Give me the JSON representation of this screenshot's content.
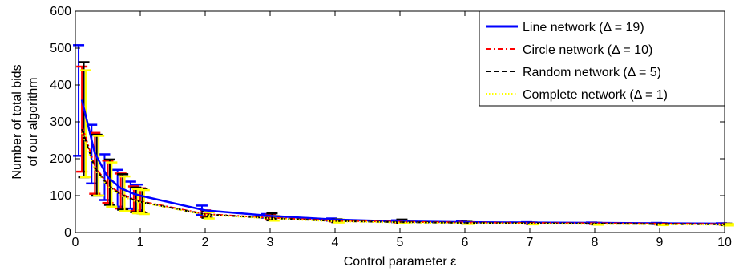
{
  "chart_data": {
    "type": "line",
    "title": "",
    "xlabel": "Control parameter ε",
    "ylabel_lines": [
      "Number of total bids",
      "of our algorithm"
    ],
    "xlim": [
      0,
      10
    ],
    "ylim": [
      0,
      600
    ],
    "x_ticks": [
      "0",
      "1",
      "2",
      "3",
      "4",
      "5",
      "6",
      "7",
      "8",
      "9",
      "10"
    ],
    "y_ticks": [
      "0",
      "100",
      "200",
      "300",
      "400",
      "500",
      "600"
    ],
    "grid": false,
    "legend_position": "top-right",
    "series": [
      {
        "name": "Line network (Δ = 19)",
        "color": "#0000ff",
        "dash": "solid",
        "errorbar_offset": -0.05,
        "x": [
          0.1,
          0.3,
          0.5,
          0.7,
          0.9,
          1,
          2,
          3,
          4,
          5,
          6,
          7,
          8,
          9,
          10
        ],
        "y": [
          360,
          215,
          150,
          120,
          105,
          100,
          60,
          45,
          35,
          30,
          28,
          27,
          26,
          25,
          24
        ],
        "y_low": [
          208,
          133,
          88,
          70,
          65,
          60,
          48,
          40,
          32,
          28,
          26,
          25,
          24,
          23,
          22
        ],
        "y_high": [
          508,
          292,
          212,
          170,
          138,
          130,
          73,
          50,
          38,
          33,
          30,
          28,
          27,
          26,
          25
        ]
      },
      {
        "name": "Circle network (Δ = 10)",
        "color": "#ff0000",
        "dash": "dashdot",
        "errorbar_offset": 0,
        "x": [
          0.1,
          0.3,
          0.5,
          0.7,
          0.9,
          1,
          2,
          3,
          4,
          5,
          6,
          7,
          8,
          9,
          10
        ],
        "y": [
          290,
          180,
          130,
          105,
          90,
          85,
          50,
          40,
          32,
          29,
          27,
          26,
          25,
          24,
          23
        ],
        "y_low": [
          165,
          105,
          80,
          65,
          58,
          55,
          42,
          35,
          30,
          27,
          25,
          24,
          23,
          22,
          21
        ],
        "y_high": [
          450,
          270,
          195,
          160,
          125,
          120,
          60,
          48,
          35,
          31,
          29,
          27,
          26,
          25,
          24
        ]
      },
      {
        "name": "Random network (Δ = 5)",
        "color": "#000000",
        "dash": "dashed",
        "errorbar_offset": 0.03,
        "x": [
          0.1,
          0.3,
          0.5,
          0.7,
          0.9,
          1,
          2,
          3,
          4,
          5,
          6,
          7,
          8,
          9,
          10
        ],
        "y": [
          280,
          175,
          128,
          103,
          88,
          83,
          49,
          39,
          31,
          28,
          26,
          25,
          24,
          23,
          22
        ],
        "y_low": [
          150,
          100,
          75,
          62,
          55,
          52,
          40,
          33,
          28,
          26,
          24,
          23,
          22,
          21,
          20
        ],
        "y_high": [
          462,
          265,
          198,
          158,
          122,
          118,
          58,
          52,
          36,
          35,
          29,
          27,
          26,
          25,
          24
        ]
      },
      {
        "name": "Complete network (Δ = 1)",
        "color": "#ffff00",
        "dash": "dotted",
        "errorbar_offset": 0.06,
        "x": [
          0.1,
          0.3,
          0.5,
          0.7,
          0.9,
          1,
          2,
          3,
          4,
          5,
          6,
          7,
          8,
          9,
          10
        ],
        "y": [
          270,
          170,
          125,
          100,
          86,
          82,
          48,
          38,
          30,
          27,
          25,
          24,
          23,
          22,
          21
        ],
        "y_low": [
          150,
          100,
          70,
          58,
          52,
          50,
          38,
          32,
          27,
          25,
          23,
          22,
          21,
          20,
          19
        ],
        "y_high": [
          440,
          262,
          190,
          152,
          118,
          115,
          55,
          45,
          35,
          32,
          28,
          26,
          25,
          24,
          23
        ]
      }
    ]
  }
}
